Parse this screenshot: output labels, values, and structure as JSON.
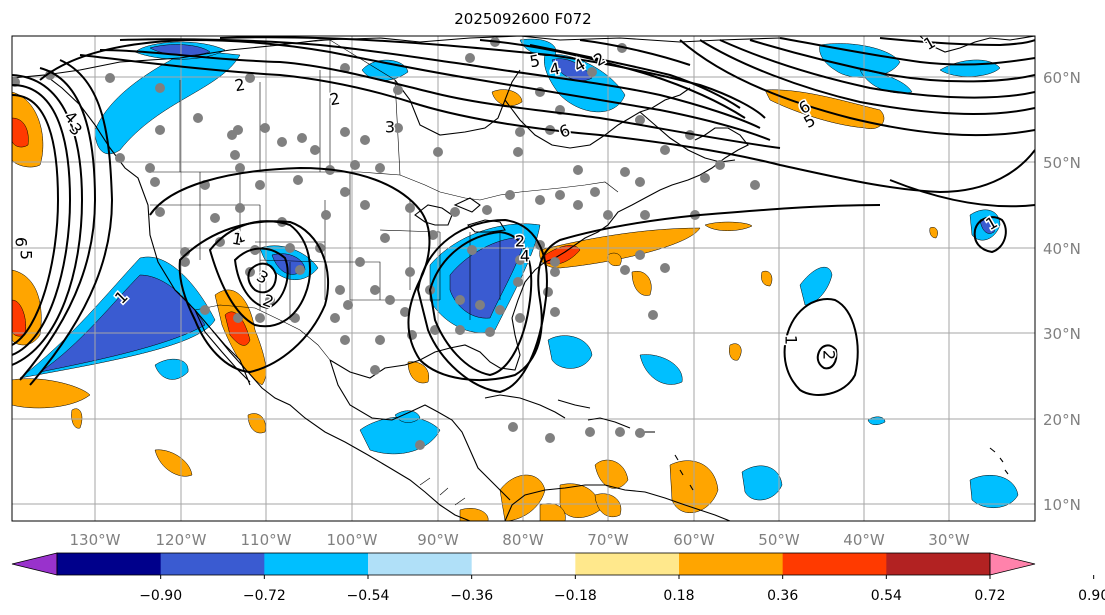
{
  "title": "2025092600 F072",
  "map": {
    "lon_ticks": [
      "130°W",
      "120°W",
      "110°W",
      "100°W",
      "90°W",
      "80°W",
      "70°W",
      "60°W",
      "50°W",
      "40°W",
      "30°W"
    ],
    "lat_ticks": [
      "60°N",
      "50°N",
      "40°N",
      "30°N",
      "20°N",
      "10°N"
    ],
    "contour_labels": [
      "6",
      "5",
      "4",
      "3",
      "2",
      "1",
      "3",
      "2",
      "1",
      "6",
      "5",
      "4",
      "6",
      "5",
      "4",
      "2",
      "1",
      "2",
      "4",
      "3",
      "2",
      "1",
      "1",
      "2",
      "1"
    ],
    "colors": {
      "land_line": "#000000",
      "grid": "#a6a6a6",
      "station": "#808080",
      "tick_label": "#808080"
    }
  },
  "colorbar": {
    "ticks": [
      "−0.90",
      "−0.72",
      "−0.54",
      "−0.36",
      "−0.18",
      "0.18",
      "0.36",
      "0.54",
      "0.72",
      "0.90"
    ],
    "colors": [
      "#9932cc",
      "#00008b",
      "#3a5bd1",
      "#00bfff",
      "#b0e0f8",
      "#ffffff",
      "#ffe88c",
      "#ffa500",
      "#ff3a00",
      "#b22222",
      "#ff82ab"
    ]
  }
}
